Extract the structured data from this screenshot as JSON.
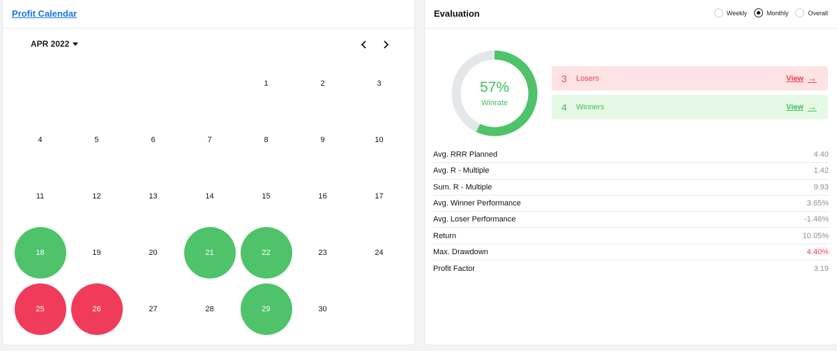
{
  "calendar": {
    "title": "Profit Calendar",
    "month_label": "APR 2022",
    "start_offset": 4,
    "days": [
      {
        "n": "1"
      },
      {
        "n": "2"
      },
      {
        "n": "3"
      },
      {
        "n": "4"
      },
      {
        "n": "5"
      },
      {
        "n": "6"
      },
      {
        "n": "7"
      },
      {
        "n": "8"
      },
      {
        "n": "9"
      },
      {
        "n": "10"
      },
      {
        "n": "11"
      },
      {
        "n": "12"
      },
      {
        "n": "13"
      },
      {
        "n": "14"
      },
      {
        "n": "15"
      },
      {
        "n": "16"
      },
      {
        "n": "17"
      },
      {
        "n": "18",
        "status": "win"
      },
      {
        "n": "19"
      },
      {
        "n": "20"
      },
      {
        "n": "21",
        "status": "win"
      },
      {
        "n": "22",
        "status": "win"
      },
      {
        "n": "23"
      },
      {
        "n": "24"
      },
      {
        "n": "25",
        "status": "loss"
      },
      {
        "n": "26",
        "status": "loss"
      },
      {
        "n": "27"
      },
      {
        "n": "28"
      },
      {
        "n": "29",
        "status": "win"
      },
      {
        "n": "30"
      }
    ]
  },
  "evaluation": {
    "title": "Evaluation",
    "periods": [
      {
        "label": "Weekly",
        "checked": false
      },
      {
        "label": "Monthly",
        "checked": true
      },
      {
        "label": "Overall",
        "checked": false
      }
    ],
    "winrate": {
      "value": "57%",
      "label": "Winrate",
      "fraction": 0.57
    },
    "losers": {
      "count": "3",
      "label": "Losers",
      "view": "View"
    },
    "winners": {
      "count": "4",
      "label": "Winners",
      "view": "View"
    },
    "metrics": [
      {
        "label": "Avg. RRR Planned",
        "value": "4.40"
      },
      {
        "label": "Avg. R - Multiple",
        "value": "1.42"
      },
      {
        "label": "Sum. R - Multiple",
        "value": "9.93"
      },
      {
        "label": "Avg. Winner Performance",
        "value": "3.65%"
      },
      {
        "label": "Avg. Loser Performance",
        "value": "-1.46%"
      },
      {
        "label": "Return",
        "value": "10.05%"
      },
      {
        "label": "Max. Drawdown",
        "value": "4.40%",
        "highlight": "negative"
      },
      {
        "label": "Profit Factor",
        "value": "3.19"
      }
    ]
  },
  "colors": {
    "win": "#4fc36a",
    "loss": "#f03c5a",
    "win_bg": "#e6f8e6",
    "loss_bg": "#fde3e3",
    "win_text": "#3fbf5c",
    "loss_text": "#ee3d52",
    "donut_track": "#e4e7ea"
  }
}
